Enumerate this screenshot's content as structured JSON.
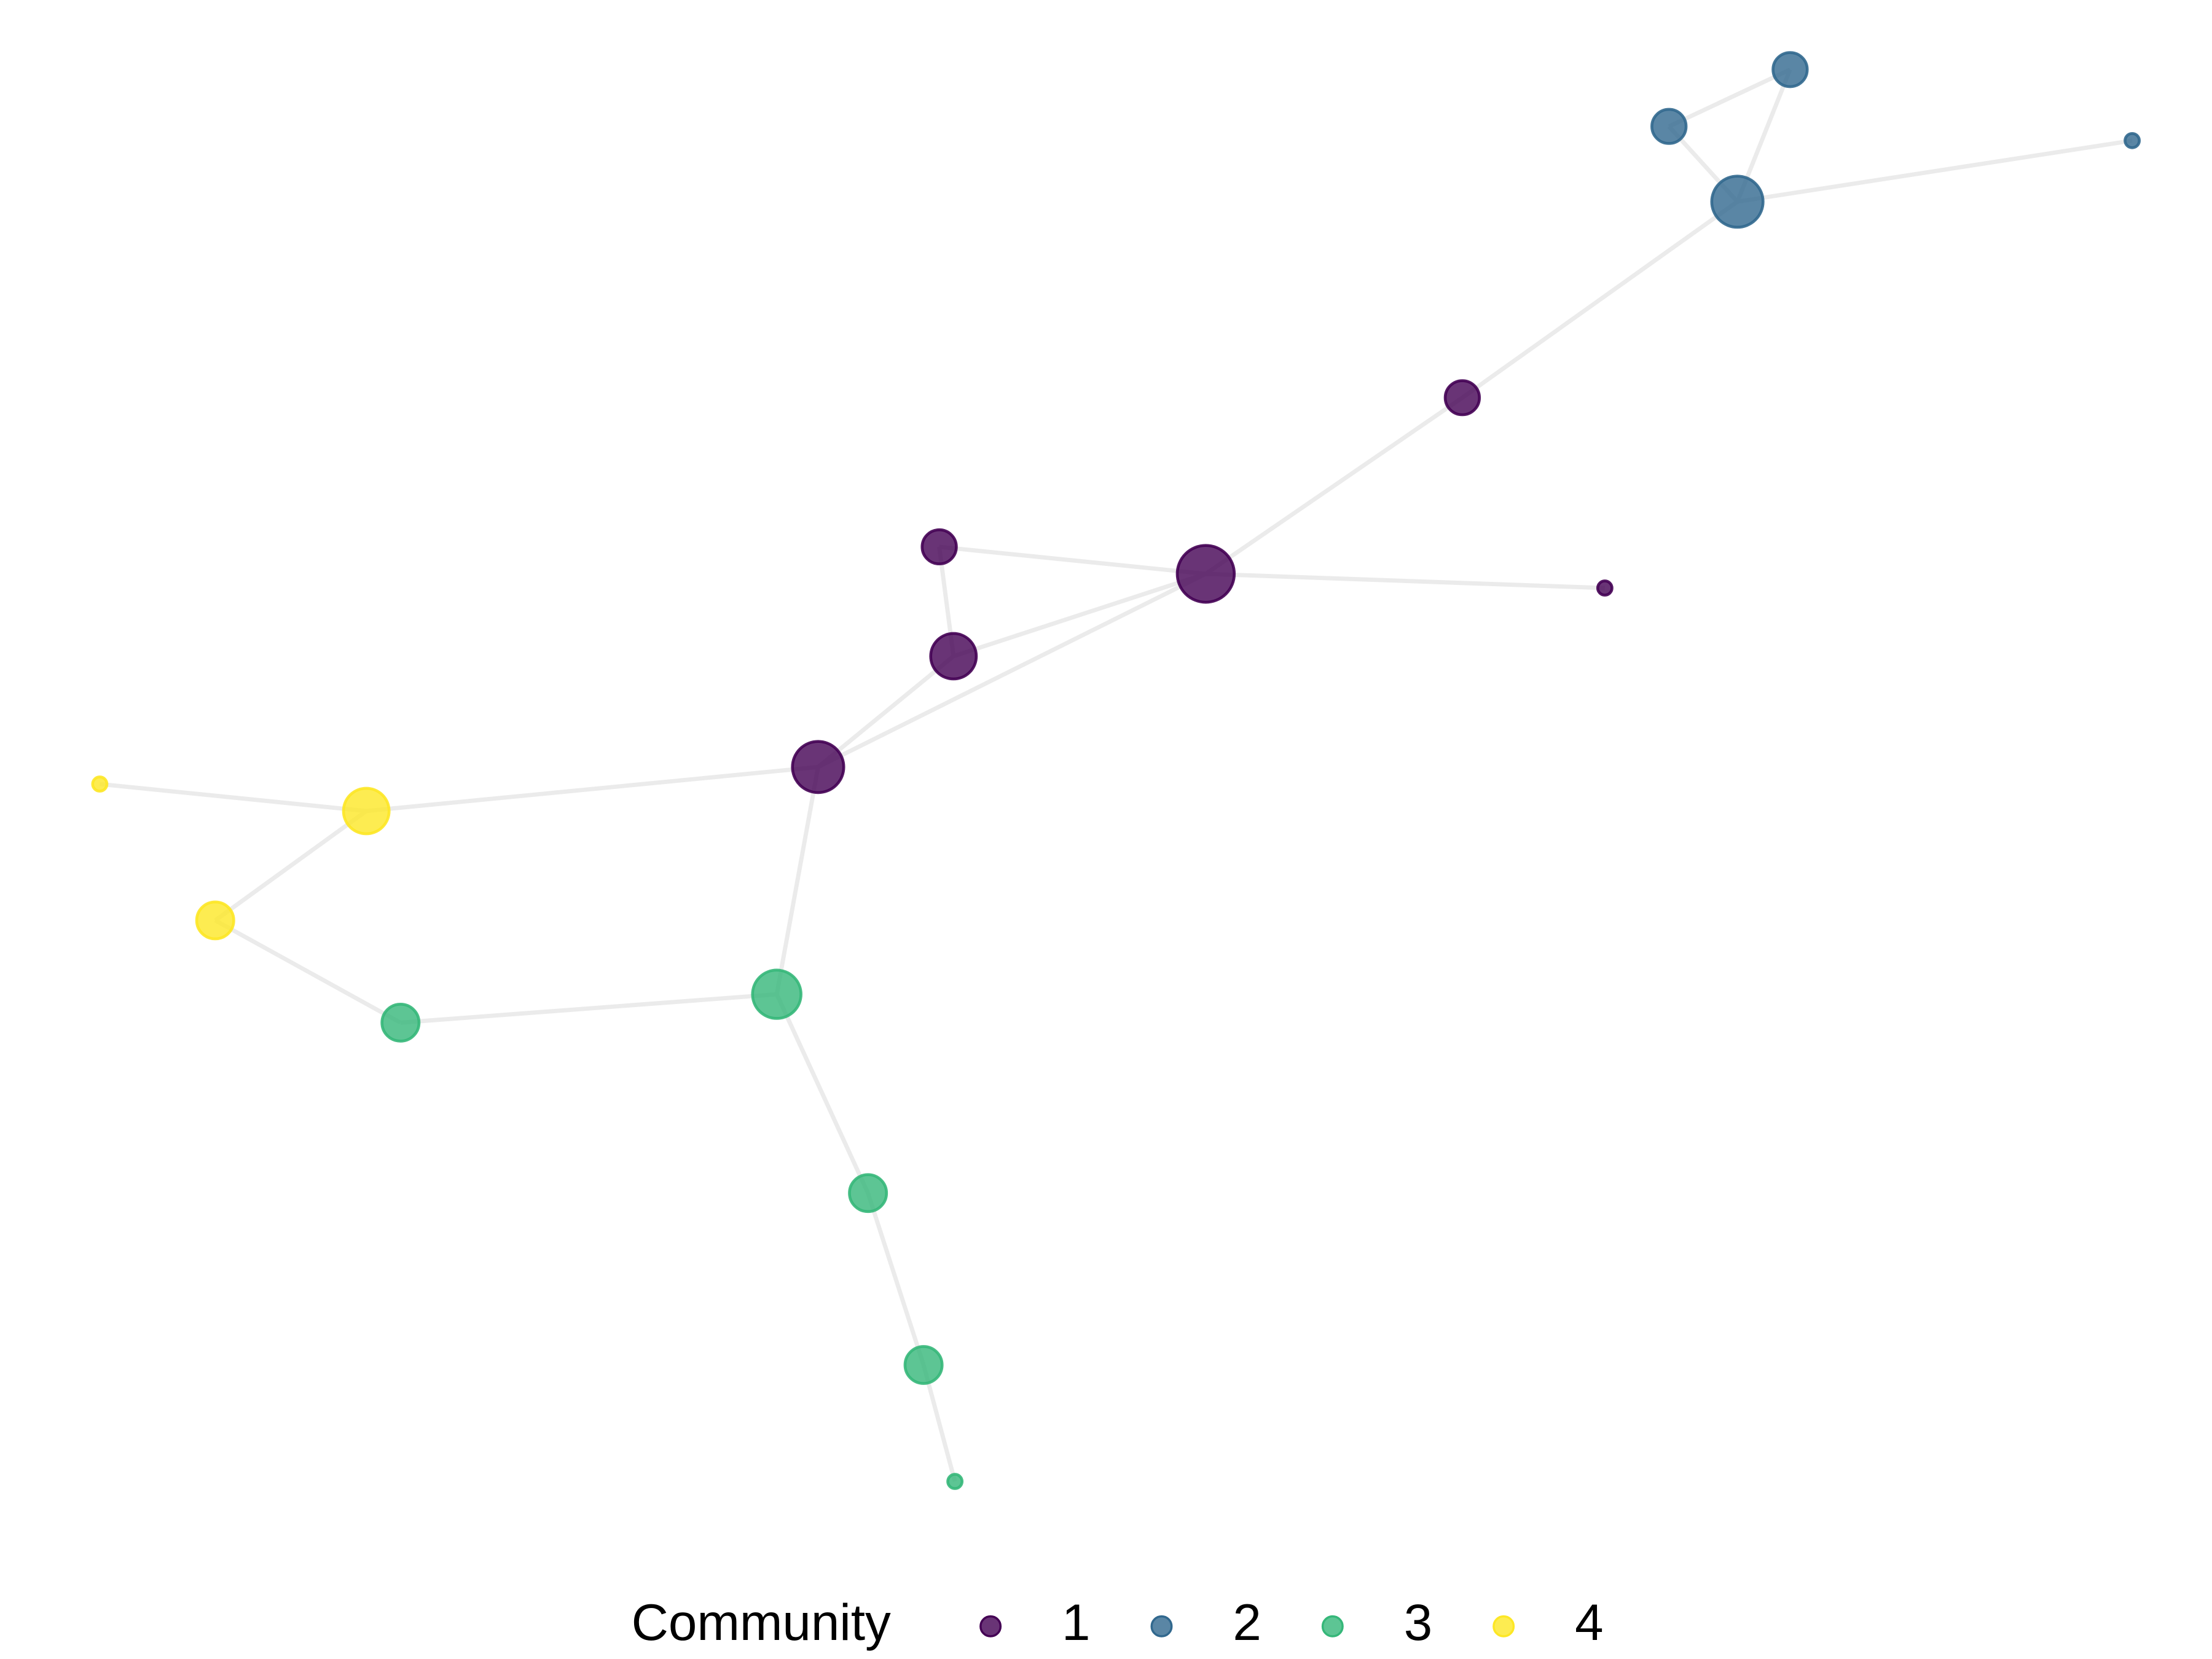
{
  "legend": {
    "title": "Community",
    "items": [
      {
        "label": "1",
        "color": "#440154"
      },
      {
        "label": "2",
        "color": "#31688e"
      },
      {
        "label": "3",
        "color": "#35b779"
      },
      {
        "label": "4",
        "color": "#fde725"
      }
    ]
  }
}
